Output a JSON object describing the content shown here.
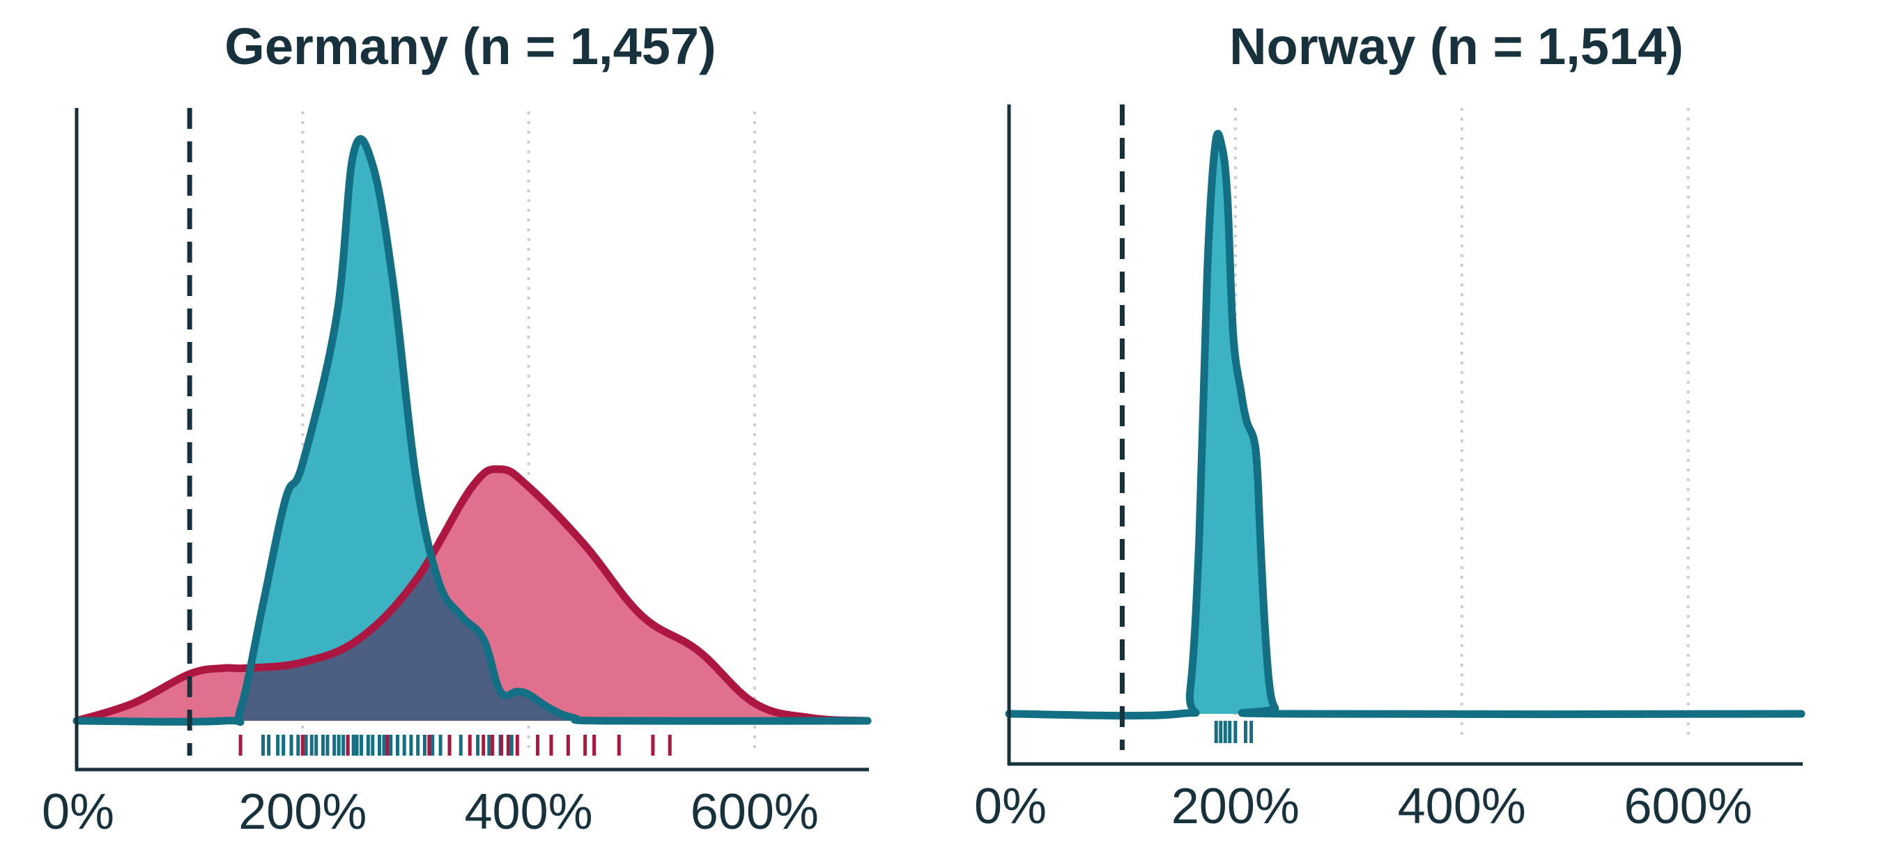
{
  "colors": {
    "teal_fill": "#3bb3c3",
    "teal_line": "#136f84",
    "red_fill": "#e0708c",
    "red_line": "#ad1640",
    "overlap_fill": "#4c5f82",
    "axis": "#17313d",
    "reference_line": "#17313d",
    "grid": "#c9cdd1"
  },
  "chart_data": [
    {
      "type": "area",
      "title": "Germany (n = 1,457)",
      "xlabel": "",
      "ylabel": "",
      "xlim": [
        0,
        700
      ],
      "ylim": [
        0,
        1
      ],
      "x_ticks": [
        0,
        200,
        400,
        600
      ],
      "x_tick_labels": [
        "0%",
        "200%",
        "400%",
        "600%"
      ],
      "grid": "vertical dotted lines at 200%, 400%, 600%",
      "reference_line_x": 100,
      "series": [
        {
          "color_key": "red",
          "x": [
            0,
            50,
            100,
            130,
            150,
            200,
            250,
            300,
            350,
            375,
            400,
            450,
            500,
            550,
            600,
            650,
            700
          ],
          "y": [
            0,
            0.03,
            0.08,
            0.09,
            0.09,
            0.1,
            0.14,
            0.24,
            0.4,
            0.43,
            0.4,
            0.3,
            0.18,
            0.12,
            0.03,
            0.005,
            0
          ]
        },
        {
          "color_key": "teal",
          "x": [
            0,
            130,
            145,
            165,
            185,
            200,
            230,
            245,
            262,
            280,
            300,
            320,
            340,
            360,
            375,
            390,
            400,
            420,
            440,
            470,
            700
          ],
          "y": [
            0,
            0,
            0.02,
            0.2,
            0.38,
            0.44,
            0.69,
            0.97,
            0.95,
            0.75,
            0.42,
            0.24,
            0.18,
            0.14,
            0.05,
            0.05,
            0.045,
            0.02,
            0.005,
            0,
            0
          ]
        }
      ],
      "rug": {
        "teal": [
          165,
          170,
          178,
          183,
          190,
          196,
          203,
          208,
          212,
          218,
          222,
          228,
          232,
          236,
          240,
          245,
          248,
          252,
          258,
          262,
          268,
          272,
          278,
          284,
          290,
          296,
          302,
          308,
          315,
          322,
          330,
          340,
          355,
          365,
          375,
          385
        ],
        "red": [
          145,
          200,
          240,
          275,
          312,
          330,
          348,
          360,
          368,
          376,
          382,
          390,
          408,
          420,
          435,
          450,
          458,
          480,
          510,
          525
        ]
      }
    },
    {
      "type": "area",
      "title": "Norway (n = 1,514)",
      "xlabel": "",
      "ylabel": "",
      "xlim": [
        0,
        700
      ],
      "ylim": [
        0,
        1
      ],
      "x_ticks": [
        0,
        200,
        400,
        600
      ],
      "x_tick_labels": [
        "0%",
        "200%",
        "400%",
        "600%"
      ],
      "grid": "vertical dotted lines at 200%, 400%, 600%",
      "reference_line_x": 100,
      "series": [
        {
          "color_key": "teal",
          "x": [
            0,
            150,
            160,
            168,
            175,
            182,
            188,
            193,
            198,
            205,
            210,
            218,
            222,
            226,
            230,
            235,
            245,
            700
          ],
          "y": [
            0,
            0,
            0.04,
            0.3,
            0.75,
            0.97,
            0.97,
            0.88,
            0.65,
            0.55,
            0.5,
            0.45,
            0.3,
            0.15,
            0.05,
            0.01,
            0,
            0
          ]
        }
      ],
      "rug": {
        "teal": [
          183,
          187,
          191,
          195,
          200,
          209,
          214
        ]
      }
    }
  ]
}
